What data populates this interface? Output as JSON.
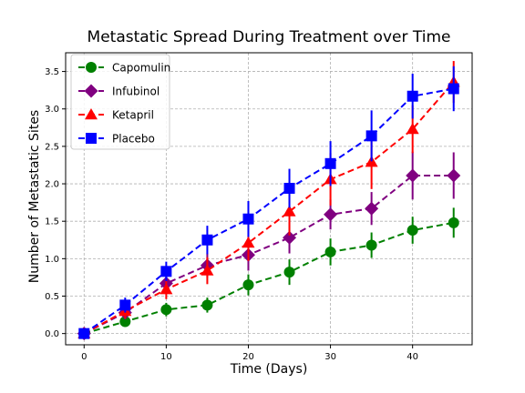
{
  "chart_data": {
    "type": "line",
    "title": "Metastatic Spread During Treatment over Time",
    "xlabel": "Time (Days)",
    "ylabel": "Number of Metastatic Sites",
    "xlim": [
      -2.25,
      47.25
    ],
    "ylim": [
      -0.15,
      3.75
    ],
    "xticks": [
      0,
      10,
      20,
      30,
      40
    ],
    "yticks": [
      0.0,
      0.5,
      1.0,
      1.5,
      2.0,
      2.5,
      3.0,
      3.5
    ],
    "ytick_labels": [
      "0.0",
      "0.5",
      "1.0",
      "1.5",
      "2.0",
      "2.5",
      "3.0",
      "3.5"
    ],
    "grid": true,
    "legend_position": "top-left",
    "x": [
      0,
      5,
      10,
      15,
      20,
      25,
      30,
      35,
      40,
      45
    ],
    "series": [
      {
        "name": "Capomulin",
        "color": "#008000",
        "marker": "circle",
        "values": [
          0.0,
          0.16,
          0.32,
          0.38,
          0.65,
          0.82,
          1.09,
          1.18,
          1.38,
          1.48
        ],
        "errors": [
          0.0,
          0.07,
          0.09,
          0.1,
          0.14,
          0.17,
          0.18,
          0.17,
          0.18,
          0.2
        ]
      },
      {
        "name": "Infubinol",
        "color": "#800080",
        "marker": "diamond",
        "values": [
          0.0,
          0.28,
          0.67,
          0.91,
          1.05,
          1.28,
          1.59,
          1.67,
          2.11,
          2.11
        ],
        "errors": [
          0.0,
          0.09,
          0.11,
          0.16,
          0.21,
          0.21,
          0.2,
          0.22,
          0.32,
          0.31
        ]
      },
      {
        "name": "Ketapril",
        "color": "#ff0000",
        "marker": "triangle",
        "values": [
          0.0,
          0.3,
          0.59,
          0.84,
          1.21,
          1.63,
          2.06,
          2.29,
          2.73,
          3.36
        ],
        "errors": [
          0.0,
          0.1,
          0.13,
          0.18,
          0.24,
          0.32,
          0.35,
          0.36,
          0.32,
          0.28
        ]
      },
      {
        "name": "Placebo",
        "color": "#0000ff",
        "marker": "square",
        "values": [
          0.0,
          0.38,
          0.83,
          1.25,
          1.53,
          1.94,
          2.27,
          2.64,
          3.17,
          3.27
        ],
        "errors": [
          0.0,
          0.1,
          0.13,
          0.19,
          0.24,
          0.26,
          0.3,
          0.34,
          0.3,
          0.3
        ]
      }
    ]
  }
}
